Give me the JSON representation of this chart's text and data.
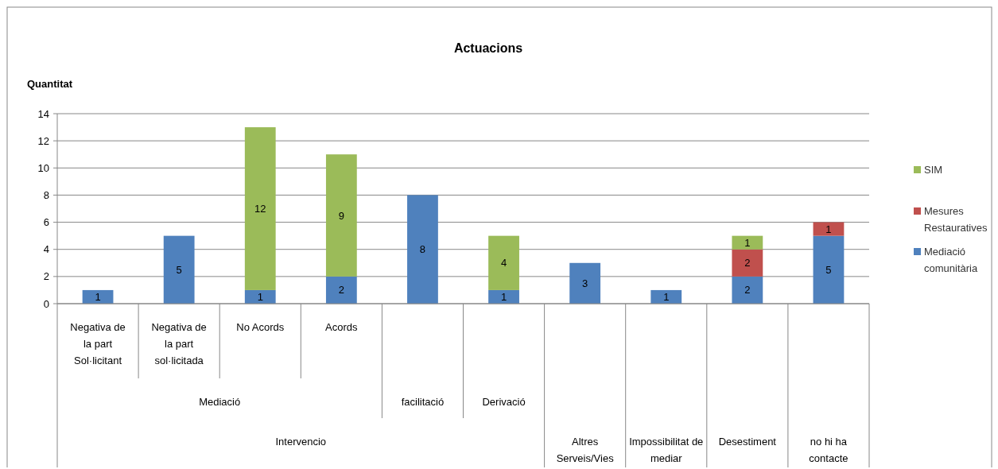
{
  "chart_data": {
    "type": "bar",
    "title": "Actuacions",
    "ylabel": "Quantitat",
    "stacked": true,
    "data_labels": true,
    "grid": "y",
    "legend": "right",
    "categories": [
      "Negativa de la part Sol·licitant",
      "Negativa de la part sol·licitada",
      "No Acords",
      "Acords",
      null,
      null,
      null,
      null,
      null,
      null
    ],
    "annotations": [
      "Mediació",
      "facilitació",
      "Derivació",
      "Intervencio",
      "Altres Serveis/Vies",
      "Impossibilitat de mediar",
      "Desestiment",
      "no hi ha contacte"
    ],
    "ylim": [
      0,
      14
    ],
    "yticks": [
      0,
      2,
      4,
      6,
      8,
      10,
      12,
      14
    ],
    "series": [
      {
        "name": "Mediació comunitària",
        "color": "#4f81bd",
        "values": [
          1,
          5,
          1,
          2,
          8,
          1,
          3,
          1,
          2,
          5
        ]
      },
      {
        "name": "Mesures Restauratives",
        "color": "#c0504d",
        "values": [
          null,
          null,
          null,
          null,
          null,
          null,
          null,
          null,
          2,
          1
        ]
      },
      {
        "name": "SIM",
        "color": "#9bbb59",
        "values": [
          null,
          null,
          12,
          9,
          null,
          4,
          null,
          null,
          1,
          null
        ]
      }
    ]
  }
}
